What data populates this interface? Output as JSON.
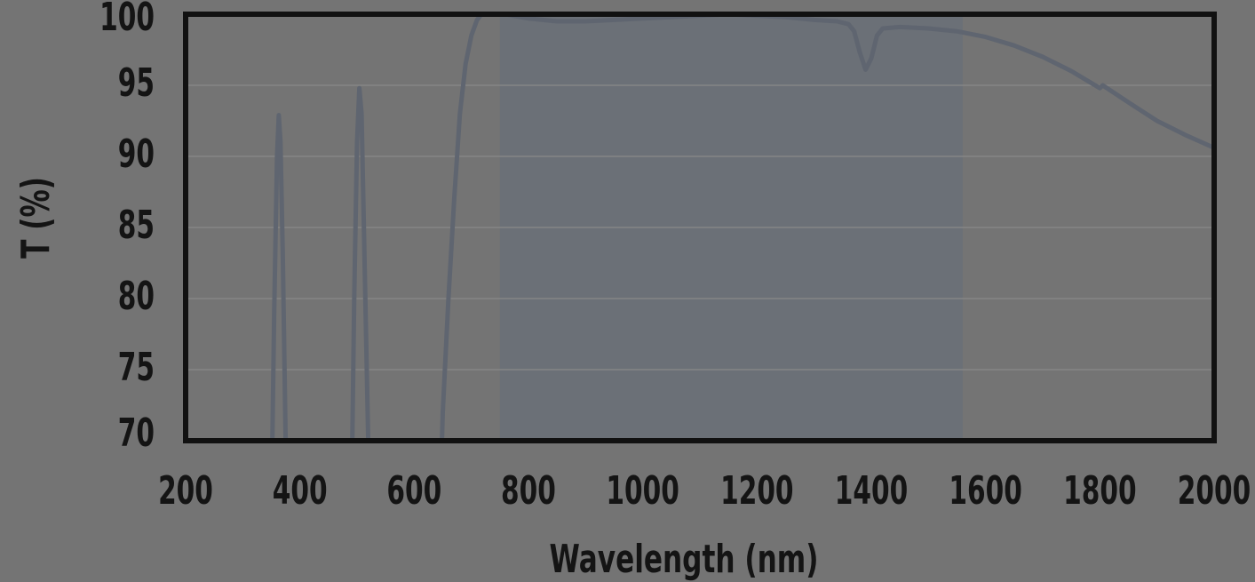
{
  "chart_data": {
    "type": "line",
    "xlabel": "Wavelength (nm)",
    "ylabel": "T (%)",
    "xlim": [
      200,
      2000
    ],
    "ylim": [
      70,
      100
    ],
    "xticks": [
      200,
      400,
      600,
      800,
      1000,
      1200,
      1400,
      1600,
      1800,
      2000
    ],
    "yticks": [
      70,
      75,
      80,
      85,
      90,
      95,
      100
    ],
    "grid": true,
    "highlight_band": {
      "x": [
        750,
        1560
      ],
      "color": "#6b7077"
    },
    "colors": {
      "background": "#747474",
      "line": "#5f6570",
      "frame": "#111111",
      "grid": "#858585"
    },
    "series": [
      {
        "points": [
          [
            350,
            65
          ],
          [
            355,
            79
          ],
          [
            360,
            90
          ],
          [
            363,
            92.9
          ],
          [
            366,
            91
          ],
          [
            370,
            83
          ],
          [
            375,
            70
          ],
          [
            380,
            62
          ],
          [
            490,
            65
          ],
          [
            495,
            80
          ],
          [
            500,
            91
          ],
          [
            504,
            94.8
          ],
          [
            508,
            93
          ],
          [
            512,
            85
          ],
          [
            520,
            69
          ],
          [
            525,
            62
          ],
          [
            645,
            65
          ],
          [
            650,
            72
          ],
          [
            660,
            80
          ],
          [
            670,
            87
          ],
          [
            680,
            93
          ],
          [
            690,
            96.5
          ],
          [
            700,
            98.5
          ],
          [
            710,
            99.6
          ],
          [
            720,
            100.1
          ],
          [
            735,
            100.2
          ],
          [
            760,
            100
          ],
          [
            800,
            99.7
          ],
          [
            850,
            99.5
          ],
          [
            900,
            99.5
          ],
          [
            950,
            99.6
          ],
          [
            1000,
            99.7
          ],
          [
            1050,
            99.8
          ],
          [
            1100,
            99.9
          ],
          [
            1150,
            100
          ],
          [
            1200,
            99.9
          ],
          [
            1250,
            99.8
          ],
          [
            1300,
            99.6
          ],
          [
            1340,
            99.5
          ],
          [
            1360,
            99.3
          ],
          [
            1370,
            98.8
          ],
          [
            1380,
            97.3
          ],
          [
            1390,
            96.1
          ],
          [
            1400,
            96.9
          ],
          [
            1410,
            98.5
          ],
          [
            1420,
            99
          ],
          [
            1450,
            99.1
          ],
          [
            1500,
            99
          ],
          [
            1550,
            98.8
          ],
          [
            1600,
            98.4
          ],
          [
            1650,
            97.8
          ],
          [
            1700,
            97
          ],
          [
            1750,
            96
          ],
          [
            1800,
            94.8
          ],
          [
            1805,
            95
          ],
          [
            1850,
            93.8
          ],
          [
            1900,
            92.5
          ],
          [
            1950,
            91.5
          ],
          [
            2000,
            90.6
          ]
        ]
      }
    ]
  }
}
